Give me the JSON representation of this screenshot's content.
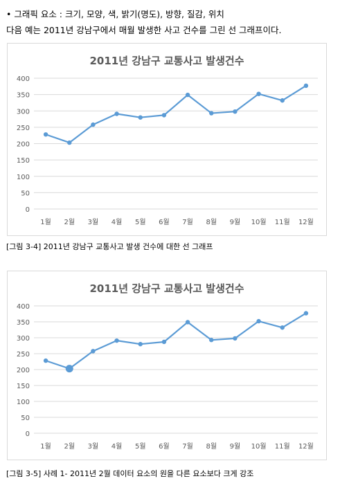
{
  "intro": {
    "bullet": "•",
    "line1": "그래픽 요소 : 크기, 모양, 색, 밝기(명도), 방향, 질감, 위치",
    "line2": "다음 예는 2011년 강남구에서 매월 발생한 사고 건수를 그린 선 그래프이다."
  },
  "captions": {
    "fig1": "[그림 3-4] 2011년 강남구 교통사고 발생 건수에 대한 선 그래프",
    "fig2": "[그림 3-5] 사례 1- 2011년 2월 데이터 요소의 원을 다른 요소보다 크게 강조"
  },
  "chart_data": [
    {
      "type": "line",
      "title": "2011년 강남구 교통사고 발생건수",
      "categories": [
        "1월",
        "2월",
        "3월",
        "4월",
        "5월",
        "6월",
        "7월",
        "8월",
        "9월",
        "10월",
        "11월",
        "12월"
      ],
      "values": [
        228,
        203,
        258,
        291,
        280,
        287,
        349,
        293,
        298,
        352,
        332,
        377
      ],
      "ylim": [
        0,
        400
      ],
      "yticks": [
        0,
        50,
        100,
        150,
        200,
        250,
        300,
        350,
        400
      ],
      "grid": true,
      "color": "#5b9bd5",
      "highlight_index": null
    },
    {
      "type": "line",
      "title": "2011년 강남구 교통사고 발생건수",
      "categories": [
        "1월",
        "2월",
        "3월",
        "4월",
        "5월",
        "6월",
        "7월",
        "8월",
        "9월",
        "10월",
        "11월",
        "12월"
      ],
      "values": [
        228,
        203,
        258,
        291,
        280,
        287,
        349,
        293,
        298,
        352,
        332,
        377
      ],
      "ylim": [
        0,
        400
      ],
      "yticks": [
        0,
        50,
        100,
        150,
        200,
        250,
        300,
        350,
        400
      ],
      "grid": true,
      "color": "#5b9bd5",
      "highlight_index": 1
    }
  ]
}
